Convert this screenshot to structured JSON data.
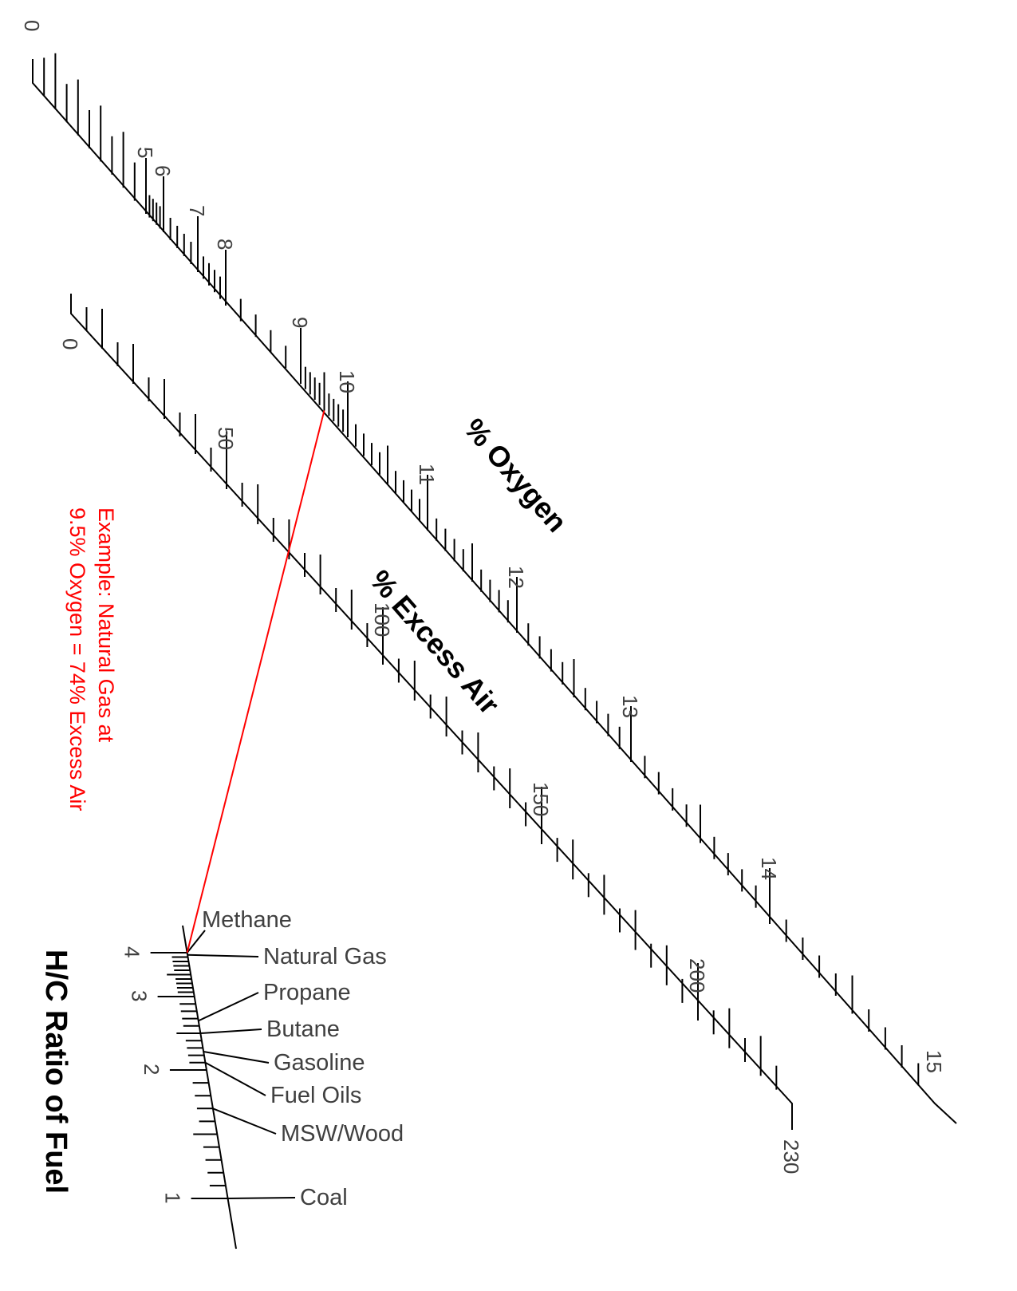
{
  "chart_data": {
    "type": "nomogram",
    "colors": {
      "axis": "#000000",
      "text": "#404040",
      "example": "#ff0000"
    },
    "scales": {
      "oxygen": {
        "title": "% Oxygen",
        "labels": [
          {
            "value": 0,
            "text": "0"
          },
          {
            "value": 5,
            "text": "5"
          },
          {
            "value": 6,
            "text": "6"
          },
          {
            "value": 7,
            "text": "7"
          },
          {
            "value": 8,
            "text": "8"
          },
          {
            "value": 9,
            "text": "9"
          },
          {
            "value": 10,
            "text": "10"
          },
          {
            "value": 11,
            "text": "11"
          },
          {
            "value": 12,
            "text": "12"
          },
          {
            "value": 13,
            "text": "13"
          },
          {
            "value": 14,
            "text": "14"
          },
          {
            "value": 15,
            "text": "15"
          }
        ]
      },
      "excess_air": {
        "title": "% Excess Air",
        "labels": [
          {
            "value": 0,
            "text": "0"
          },
          {
            "value": 50,
            "text": "50"
          },
          {
            "value": 100,
            "text": "100"
          },
          {
            "value": 150,
            "text": "150"
          },
          {
            "value": 200,
            "text": "200"
          },
          {
            "value": 230,
            "text": "230"
          }
        ]
      },
      "hc_ratio": {
        "title": "H/C Ratio of Fuel",
        "labels": [
          {
            "value": 1,
            "text": "1"
          },
          {
            "value": 2,
            "text": "2"
          },
          {
            "value": 3,
            "text": "3"
          },
          {
            "value": 4,
            "text": "4"
          }
        ],
        "fuels": [
          {
            "name": "Methane",
            "value": 4.0
          },
          {
            "name": "Natural Gas",
            "value": 3.95
          },
          {
            "name": "Propane",
            "value": 2.67
          },
          {
            "name": "Butane",
            "value": 2.5
          },
          {
            "name": "Gasoline",
            "value": 2.25
          },
          {
            "name": "Fuel Oils",
            "value": 2.1
          },
          {
            "name": "MSW/Wood",
            "value": 1.7
          },
          {
            "name": "Coal",
            "value": 1.0
          }
        ]
      }
    },
    "example": {
      "text_line1": "Example: Natural Gas at",
      "text_line2": "9.5% Oxygen = 74% Excess Air",
      "oxygen": 9.5,
      "excess_air": 74,
      "hc_ratio": 4.0
    }
  }
}
